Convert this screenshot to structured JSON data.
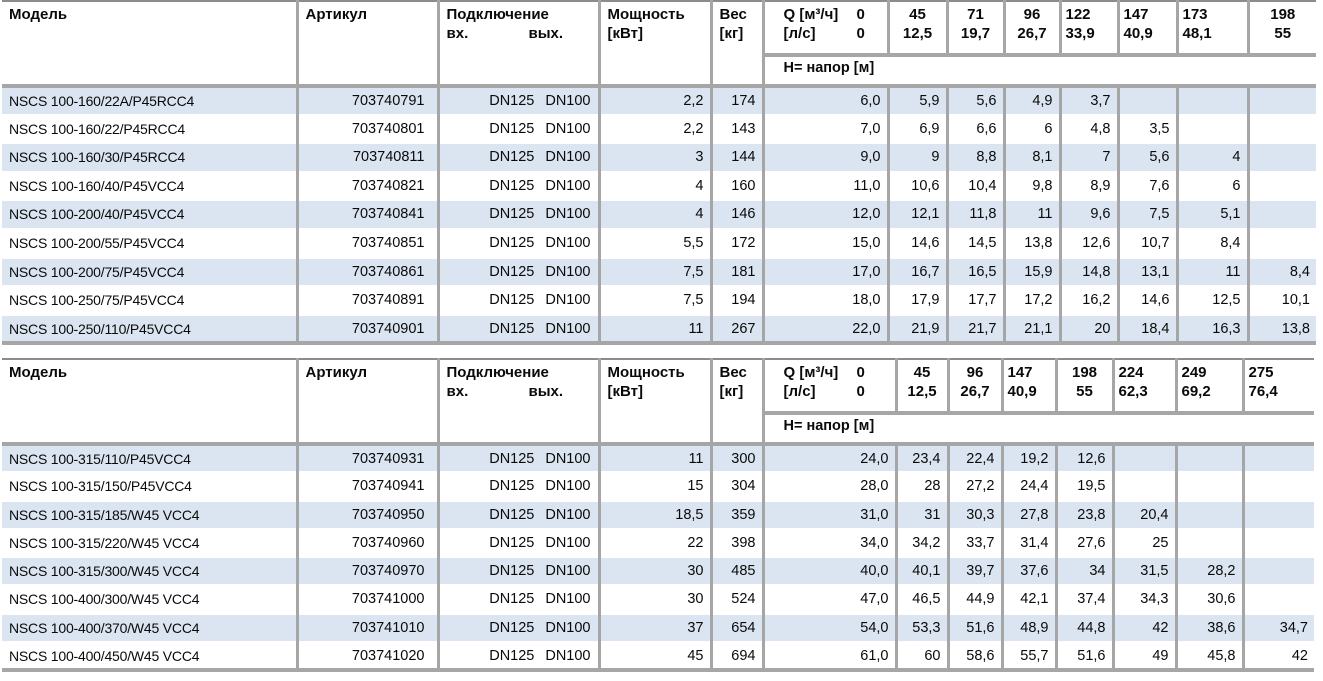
{
  "colors": {
    "row_alt": "#dbe5f1",
    "border": "#a6a6a6",
    "text": "#0a0a0a"
  },
  "tables": [
    {
      "header": {
        "model": "Модель",
        "article": "Артикул",
        "connection": "Подключение",
        "conn_in": "вх.",
        "conn_out": "вых.",
        "power_l1": "Мощность",
        "power_l2": "[кВт]",
        "weight_l1": "Вес",
        "weight_l2": "[кг]",
        "q_label": "Q [м³/ч]",
        "q_zero": "0",
        "lps_label": "[л/с]",
        "lps_zero": "0",
        "head_label": "H= напор [м]"
      },
      "q_cols": [
        {
          "flow": "45",
          "lps": "12,5",
          "align": "center"
        },
        {
          "flow": "71",
          "lps": "19,7",
          "align": "center"
        },
        {
          "flow": "96",
          "lps": "26,7",
          "align": "center"
        },
        {
          "flow": "122",
          "lps": "33,9",
          "align": "left"
        },
        {
          "flow": "147",
          "lps": "40,9",
          "align": "left"
        },
        {
          "flow": "173",
          "lps": "48,1",
          "align": "left"
        },
        {
          "flow": "198",
          "lps": "55",
          "align": "center"
        }
      ],
      "rows": [
        {
          "model": "NSCS 100-160/22A/P45RCC4",
          "article": "703740791",
          "dn_in": "DN125",
          "dn_out": "DN100",
          "power": "2,2",
          "weight": "174",
          "heads": [
            "6,0",
            "5,9",
            "5,6",
            "4,9",
            "3,7",
            "",
            "",
            ""
          ]
        },
        {
          "model": "NSCS 100-160/22/P45RCC4",
          "article": "703740801",
          "dn_in": "DN125",
          "dn_out": "DN100",
          "power": "2,2",
          "weight": "143",
          "heads": [
            "7,0",
            "6,9",
            "6,6",
            "6",
            "4,8",
            "3,5",
            "",
            ""
          ]
        },
        {
          "model": "NSCS 100-160/30/P45RCC4",
          "article": "703740811",
          "dn_in": "DN125",
          "dn_out": "DN100",
          "power": "3",
          "weight": "144",
          "heads": [
            "9,0",
            "9",
            "8,8",
            "8,1",
            "7",
            "5,6",
            "4",
            ""
          ]
        },
        {
          "model": "NSCS 100-160/40/P45VCC4",
          "article": "703740821",
          "dn_in": "DN125",
          "dn_out": "DN100",
          "power": "4",
          "weight": "160",
          "heads": [
            "11,0",
            "10,6",
            "10,4",
            "9,8",
            "8,9",
            "7,6",
            "6",
            ""
          ]
        },
        {
          "model": "NSCS 100-200/40/P45VCC4",
          "article": "703740841",
          "dn_in": "DN125",
          "dn_out": "DN100",
          "power": "4",
          "weight": "146",
          "heads": [
            "12,0",
            "12,1",
            "11,8",
            "11",
            "9,6",
            "7,5",
            "5,1",
            ""
          ]
        },
        {
          "model": "NSCS 100-200/55/P45VCC4",
          "article": "703740851",
          "dn_in": "DN125",
          "dn_out": "DN100",
          "power": "5,5",
          "weight": "172",
          "heads": [
            "15,0",
            "14,6",
            "14,5",
            "13,8",
            "12,6",
            "10,7",
            "8,4",
            ""
          ]
        },
        {
          "model": "NSCS 100-200/75/P45VCC4",
          "article": "703740861",
          "dn_in": "DN125",
          "dn_out": "DN100",
          "power": "7,5",
          "weight": "181",
          "heads": [
            "17,0",
            "16,7",
            "16,5",
            "15,9",
            "14,8",
            "13,1",
            "11",
            "8,4"
          ]
        },
        {
          "model": "NSCS 100-250/75/P45VCC4",
          "article": "703740891",
          "dn_in": "DN125",
          "dn_out": "DN100",
          "power": "7,5",
          "weight": "194",
          "heads": [
            "18,0",
            "17,9",
            "17,7",
            "17,2",
            "16,2",
            "14,6",
            "12,5",
            "10,1"
          ]
        },
        {
          "model": "NSCS 100-250/110/P45VCC4",
          "article": "703740901",
          "dn_in": "DN125",
          "dn_out": "DN100",
          "power": "11",
          "weight": "267",
          "heads": [
            "22,0",
            "21,9",
            "21,7",
            "21,1",
            "20",
            "18,4",
            "16,3",
            "13,8"
          ]
        }
      ]
    },
    {
      "header": {
        "model": "Модель",
        "article": "Артикул",
        "connection": "Подключение",
        "conn_in": "вх.",
        "conn_out": "вых.",
        "power_l1": "Мощность",
        "power_l2": "[кВт]",
        "weight_l1": "Вес",
        "weight_l2": "[кг]",
        "q_label": "Q [м³/ч]",
        "q_zero": "0",
        "lps_label": "[л/с]",
        "lps_zero": "0",
        "head_label": "H= напор [м]"
      },
      "q_cols": [
        {
          "flow": "45",
          "lps": "12,5",
          "align": "center"
        },
        {
          "flow": "96",
          "lps": "26,7",
          "align": "center"
        },
        {
          "flow": "147",
          "lps": "40,9",
          "align": "left"
        },
        {
          "flow": "198",
          "lps": "55",
          "align": "center"
        },
        {
          "flow": "224",
          "lps": "62,3",
          "align": "left"
        },
        {
          "flow": "249",
          "lps": "69,2",
          "align": "left"
        },
        {
          "flow": "275",
          "lps": "76,4",
          "align": "left"
        }
      ],
      "rows": [
        {
          "model": "NSCS 100-315/110/P45VCC4",
          "article": "703740931",
          "dn_in": "DN125",
          "dn_out": "DN100",
          "power": "11",
          "weight": "300",
          "heads": [
            "24,0",
            "23,4",
            "22,4",
            "19,2",
            "12,6",
            "",
            "",
            ""
          ]
        },
        {
          "model": "NSCS 100-315/150/P45VCC4",
          "article": "703740941",
          "dn_in": "DN125",
          "dn_out": "DN100",
          "power": "15",
          "weight": "304",
          "heads": [
            "28,0",
            "28",
            "27,2",
            "24,4",
            "19,5",
            "",
            "",
            ""
          ]
        },
        {
          "model": "NSCS 100-315/185/W45 VCC4",
          "article": "703740950",
          "dn_in": "DN125",
          "dn_out": "DN100",
          "power": "18,5",
          "weight": "359",
          "heads": [
            "31,0",
            "31",
            "30,3",
            "27,8",
            "23,8",
            "20,4",
            "",
            ""
          ]
        },
        {
          "model": "NSCS 100-315/220/W45 VCC4",
          "article": "703740960",
          "dn_in": "DN125",
          "dn_out": "DN100",
          "power": "22",
          "weight": "398",
          "heads": [
            "34,0",
            "34,2",
            "33,7",
            "31,4",
            "27,6",
            "25",
            "",
            ""
          ]
        },
        {
          "model": "NSCS 100-315/300/W45 VCC4",
          "article": "703740970",
          "dn_in": "DN125",
          "dn_out": "DN100",
          "power": "30",
          "weight": "485",
          "heads": [
            "40,0",
            "40,1",
            "39,7",
            "37,6",
            "34",
            "31,5",
            "28,2",
            ""
          ]
        },
        {
          "model": "NSCS 100-400/300/W45 VCC4",
          "article": "703741000",
          "dn_in": "DN125",
          "dn_out": "DN100",
          "power": "30",
          "weight": "524",
          "heads": [
            "47,0",
            "46,5",
            "44,9",
            "42,1",
            "37,4",
            "34,3",
            "30,6",
            ""
          ]
        },
        {
          "model": "NSCS 100-400/370/W45 VCC4",
          "article": "703741010",
          "dn_in": "DN125",
          "dn_out": "DN100",
          "power": "37",
          "weight": "654",
          "heads": [
            "54,0",
            "53,3",
            "51,6",
            "48,9",
            "44,8",
            "42",
            "38,6",
            "34,7"
          ]
        },
        {
          "model": "NSCS 100-400/450/W45 VCC4",
          "article": "703741020",
          "dn_in": "DN125",
          "dn_out": "DN100",
          "power": "45",
          "weight": "694",
          "heads": [
            "61,0",
            "60",
            "58,6",
            "55,7",
            "51,6",
            "49",
            "45,8",
            "42"
          ]
        }
      ]
    }
  ]
}
